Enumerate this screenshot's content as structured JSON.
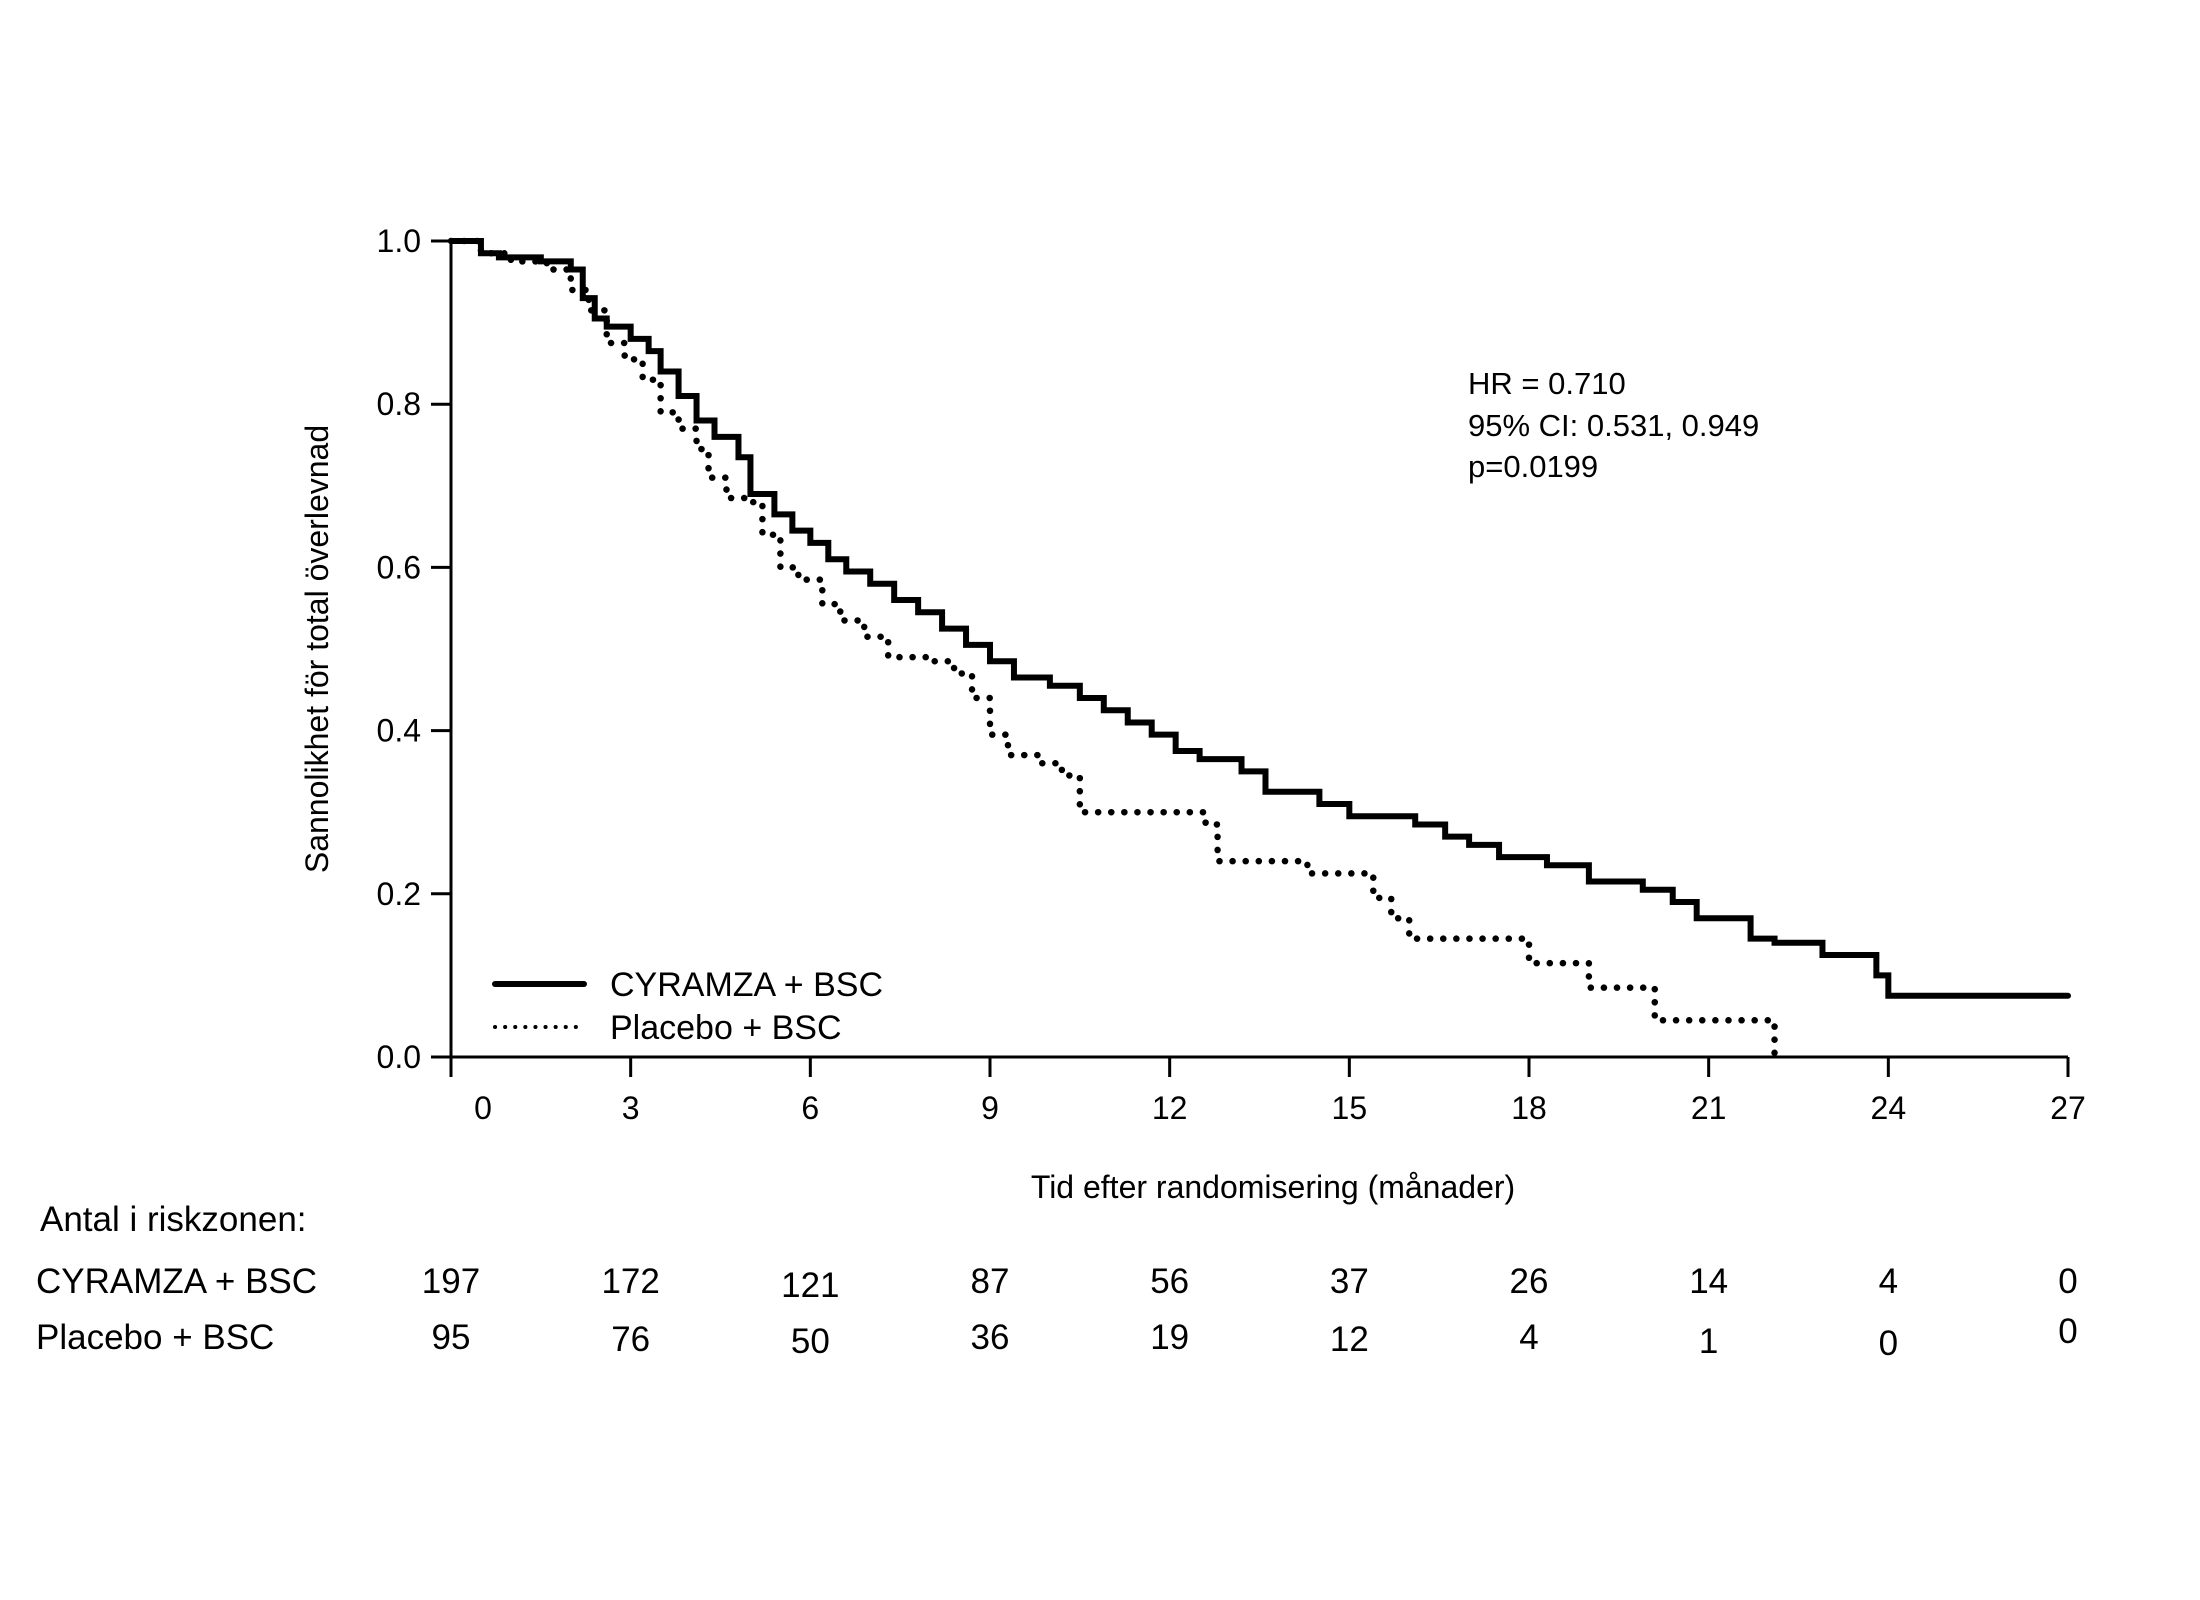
{
  "chart_data": {
    "type": "line",
    "subtype": "kaplan-meier-step",
    "title": "",
    "xlabel": "Tid efter randomisering (månader)",
    "ylabel": "Sannolikhet för total överlevnad",
    "xlim": [
      0,
      27
    ],
    "ylim": [
      0,
      1.0
    ],
    "xticks": [
      0,
      3,
      6,
      9,
      12,
      15,
      18,
      21,
      24,
      27
    ],
    "xtick_labels": [
      "0",
      "3",
      "6",
      "9",
      "12",
      "15",
      "18",
      "21",
      "24",
      "27"
    ],
    "yticks": [
      0.0,
      0.2,
      0.4,
      0.6,
      0.8,
      1.0
    ],
    "ytick_labels": [
      "0.0",
      "0.2",
      "0.4",
      "0.6",
      "0.8",
      "1.0"
    ],
    "grid": false,
    "legend_position": "bottom-left",
    "annotations": [
      "HR = 0.710",
      "95% CI: 0.531, 0.949",
      "p=0.0199"
    ],
    "series": [
      {
        "name": "CYRAMZA + BSC",
        "style": "solid",
        "color": "#000000",
        "x": [
          0,
          0.5,
          0.8,
          1.5,
          2.0,
          2.2,
          2.4,
          2.6,
          3.0,
          3.3,
          3.5,
          3.8,
          4.1,
          4.4,
          4.8,
          5.0,
          5.4,
          5.7,
          6.0,
          6.3,
          6.6,
          7.0,
          7.4,
          7.8,
          8.2,
          8.6,
          9.0,
          9.4,
          10.0,
          10.5,
          10.9,
          11.3,
          11.7,
          12.1,
          12.5,
          13.2,
          13.6,
          14.5,
          15.0,
          16.1,
          16.6,
          17.0,
          17.5,
          18.3,
          19.0,
          19.9,
          20.4,
          20.8,
          21.7,
          22.1,
          22.9,
          23.8,
          24.0,
          27.0
        ],
        "y": [
          1.0,
          0.985,
          0.98,
          0.975,
          0.965,
          0.93,
          0.905,
          0.895,
          0.88,
          0.865,
          0.84,
          0.81,
          0.78,
          0.76,
          0.735,
          0.69,
          0.665,
          0.645,
          0.63,
          0.61,
          0.595,
          0.58,
          0.56,
          0.545,
          0.525,
          0.505,
          0.485,
          0.465,
          0.455,
          0.44,
          0.425,
          0.41,
          0.395,
          0.375,
          0.365,
          0.35,
          0.325,
          0.31,
          0.295,
          0.285,
          0.27,
          0.26,
          0.245,
          0.235,
          0.215,
          0.205,
          0.19,
          0.17,
          0.145,
          0.14,
          0.125,
          0.1,
          0.075,
          0.075
        ]
      },
      {
        "name": "Placebo + BSC",
        "style": "dotted",
        "color": "#000000",
        "x": [
          0,
          0.5,
          1.0,
          1.6,
          2.0,
          2.3,
          2.6,
          2.9,
          3.2,
          3.5,
          3.8,
          4.1,
          4.3,
          4.6,
          5.0,
          5.2,
          5.5,
          5.8,
          6.2,
          6.5,
          6.9,
          7.3,
          8.0,
          8.4,
          8.7,
          9.0,
          9.3,
          9.8,
          10.2,
          10.5,
          12.3,
          12.6,
          12.8,
          14.1,
          14.3,
          15.2,
          15.4,
          15.7,
          16.0,
          17.8,
          18.0,
          18.8,
          19.0,
          19.9,
          20.1,
          22.0,
          22.1
        ],
        "y": [
          1.0,
          0.985,
          0.975,
          0.965,
          0.94,
          0.915,
          0.875,
          0.855,
          0.83,
          0.79,
          0.77,
          0.745,
          0.71,
          0.685,
          0.68,
          0.64,
          0.6,
          0.585,
          0.555,
          0.535,
          0.515,
          0.49,
          0.485,
          0.47,
          0.44,
          0.395,
          0.37,
          0.36,
          0.345,
          0.3,
          0.3,
          0.285,
          0.24,
          0.24,
          0.225,
          0.225,
          0.195,
          0.17,
          0.145,
          0.145,
          0.115,
          0.115,
          0.085,
          0.085,
          0.045,
          0.045,
          0.0
        ]
      }
    ]
  },
  "risk_table": {
    "title": "Antal i riskzonen:",
    "timepoints": [
      0,
      3,
      6,
      9,
      12,
      15,
      18,
      21,
      24,
      27
    ],
    "rows": [
      {
        "label": "CYRAMZA + BSC",
        "values": [
          "197",
          "172",
          "121",
          "87",
          "56",
          "37",
          "26",
          "14",
          "4",
          "0"
        ]
      },
      {
        "label": "Placebo + BSC",
        "values": [
          "95",
          "76",
          "50",
          "36",
          "19",
          "12",
          "4",
          "1",
          "0",
          "0"
        ]
      }
    ]
  }
}
